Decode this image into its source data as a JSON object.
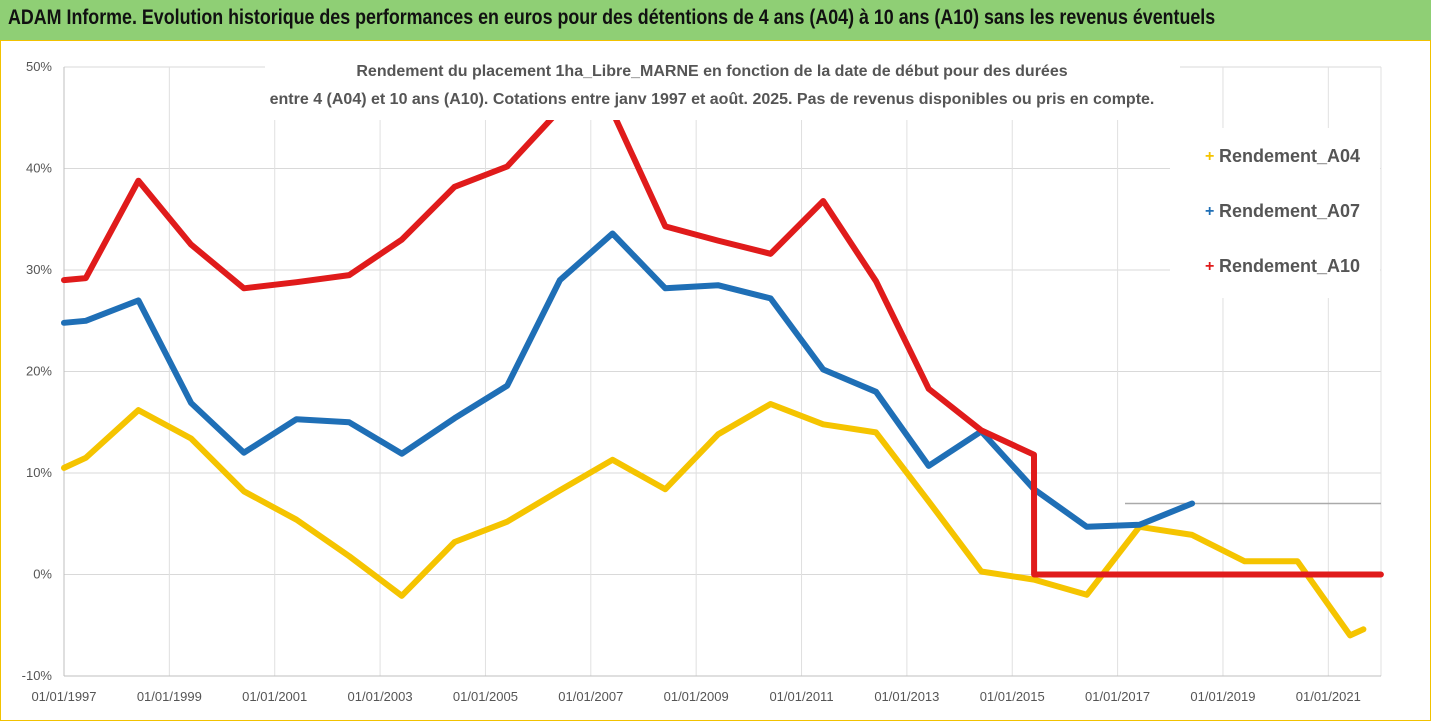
{
  "banner": {
    "text": "ADAM Informe. Evolution historique des performances en euros pour des détentions de 4 ans (A04) à 10 ans (A10) sans les revenus éventuels"
  },
  "chart_data": {
    "type": "line",
    "title_lines": [
      "Rendement du placement 1ha_Libre_MARNE en fonction de la date de début pour des durées",
      "entre 4 (A04) et 10 ans (A10). Cotations entre janv 1997 et août. 2025. Pas de revenus disponibles ou pris en compte."
    ],
    "xlabel": "",
    "ylabel": "",
    "x_ticks": [
      "01/01/1997",
      "01/01/1999",
      "01/01/2001",
      "01/01/2003",
      "01/01/2005",
      "01/01/2007",
      "01/01/2009",
      "01/01/2011",
      "01/01/2013",
      "01/01/2015",
      "01/01/2017",
      "01/01/2019",
      "01/01/2021"
    ],
    "y_ticks": [
      "50%",
      "40%",
      "30%",
      "20%",
      "10%",
      "0%",
      "-10%"
    ],
    "y_tick_values": [
      50,
      40,
      30,
      20,
      10,
      0,
      -10
    ],
    "xlim": [
      "1997-01-01",
      "2022-01-01"
    ],
    "ylim": [
      -10,
      50
    ],
    "grid": true,
    "legend_position": "right",
    "series": [
      {
        "name": "Rendement_A04",
        "color": "#f5c400",
        "points": [
          [
            "1997-01-01",
            10.5
          ],
          [
            "1997-06-01",
            11.5
          ],
          [
            "1998-06-01",
            16.2
          ],
          [
            "1999-06-01",
            13.4
          ],
          [
            "2000-06-01",
            8.2
          ],
          [
            "2001-06-01",
            5.4
          ],
          [
            "2002-06-01",
            1.8
          ],
          [
            "2003-06-01",
            -2.1
          ],
          [
            "2004-06-01",
            3.2
          ],
          [
            "2005-06-01",
            5.2
          ],
          [
            "2006-06-01",
            8.3
          ],
          [
            "2007-06-01",
            11.3
          ],
          [
            "2008-06-01",
            8.4
          ],
          [
            "2009-06-01",
            13.8
          ],
          [
            "2010-06-01",
            16.8
          ],
          [
            "2011-06-01",
            14.8
          ],
          [
            "2012-06-01",
            14.0
          ],
          [
            "2013-06-01",
            7.2
          ],
          [
            "2014-06-01",
            0.3
          ],
          [
            "2015-06-01",
            -0.5
          ],
          [
            "2016-06-01",
            -2.0
          ],
          [
            "2017-06-01",
            4.7
          ],
          [
            "2018-06-01",
            3.9
          ],
          [
            "2019-06-01",
            1.3
          ],
          [
            "2020-06-01",
            1.3
          ],
          [
            "2021-06-01",
            -6.0
          ],
          [
            "2021-09-01",
            -5.4
          ]
        ]
      },
      {
        "name": "Rendement_A07",
        "color": "#1f6fb6",
        "points": [
          [
            "1997-01-01",
            24.8
          ],
          [
            "1997-06-01",
            25.0
          ],
          [
            "1998-06-01",
            27.0
          ],
          [
            "1999-06-01",
            16.9
          ],
          [
            "2000-06-01",
            12.0
          ],
          [
            "2001-06-01",
            15.3
          ],
          [
            "2002-06-01",
            15.0
          ],
          [
            "2003-06-01",
            11.9
          ],
          [
            "2004-06-01",
            15.4
          ],
          [
            "2005-06-01",
            18.6
          ],
          [
            "2006-06-01",
            29.0
          ],
          [
            "2007-06-01",
            33.6
          ],
          [
            "2008-06-01",
            28.2
          ],
          [
            "2009-06-01",
            28.5
          ],
          [
            "2010-06-01",
            27.2
          ],
          [
            "2011-06-01",
            20.2
          ],
          [
            "2012-06-01",
            18.0
          ],
          [
            "2013-06-01",
            10.7
          ],
          [
            "2014-06-01",
            14.1
          ],
          [
            "2015-06-01",
            8.4
          ],
          [
            "2016-06-01",
            4.7
          ],
          [
            "2017-06-01",
            4.9
          ],
          [
            "2018-06-01",
            7.0
          ]
        ]
      },
      {
        "name": "Rendement_A10",
        "color": "#e01b1b",
        "points": [
          [
            "1997-01-01",
            29.0
          ],
          [
            "1997-06-01",
            29.2
          ],
          [
            "1998-06-01",
            38.8
          ],
          [
            "1999-06-01",
            32.5
          ],
          [
            "2000-06-01",
            28.2
          ],
          [
            "2001-06-01",
            28.8
          ],
          [
            "2002-06-01",
            29.5
          ],
          [
            "2003-06-01",
            33.0
          ],
          [
            "2004-06-01",
            38.2
          ],
          [
            "2005-06-01",
            40.2
          ],
          [
            "2006-06-01",
            45.8
          ],
          [
            "2007-06-01",
            45.6
          ],
          [
            "2008-06-01",
            34.3
          ],
          [
            "2009-06-01",
            32.9
          ],
          [
            "2010-06-01",
            31.6
          ],
          [
            "2011-06-01",
            36.8
          ],
          [
            "2012-06-01",
            28.9
          ],
          [
            "2013-06-01",
            18.3
          ],
          [
            "2014-06-01",
            14.2
          ],
          [
            "2015-06-01",
            11.8
          ],
          [
            "2015-06-02",
            0.0
          ],
          [
            "2021-12-31",
            0.0
          ]
        ]
      }
    ]
  }
}
